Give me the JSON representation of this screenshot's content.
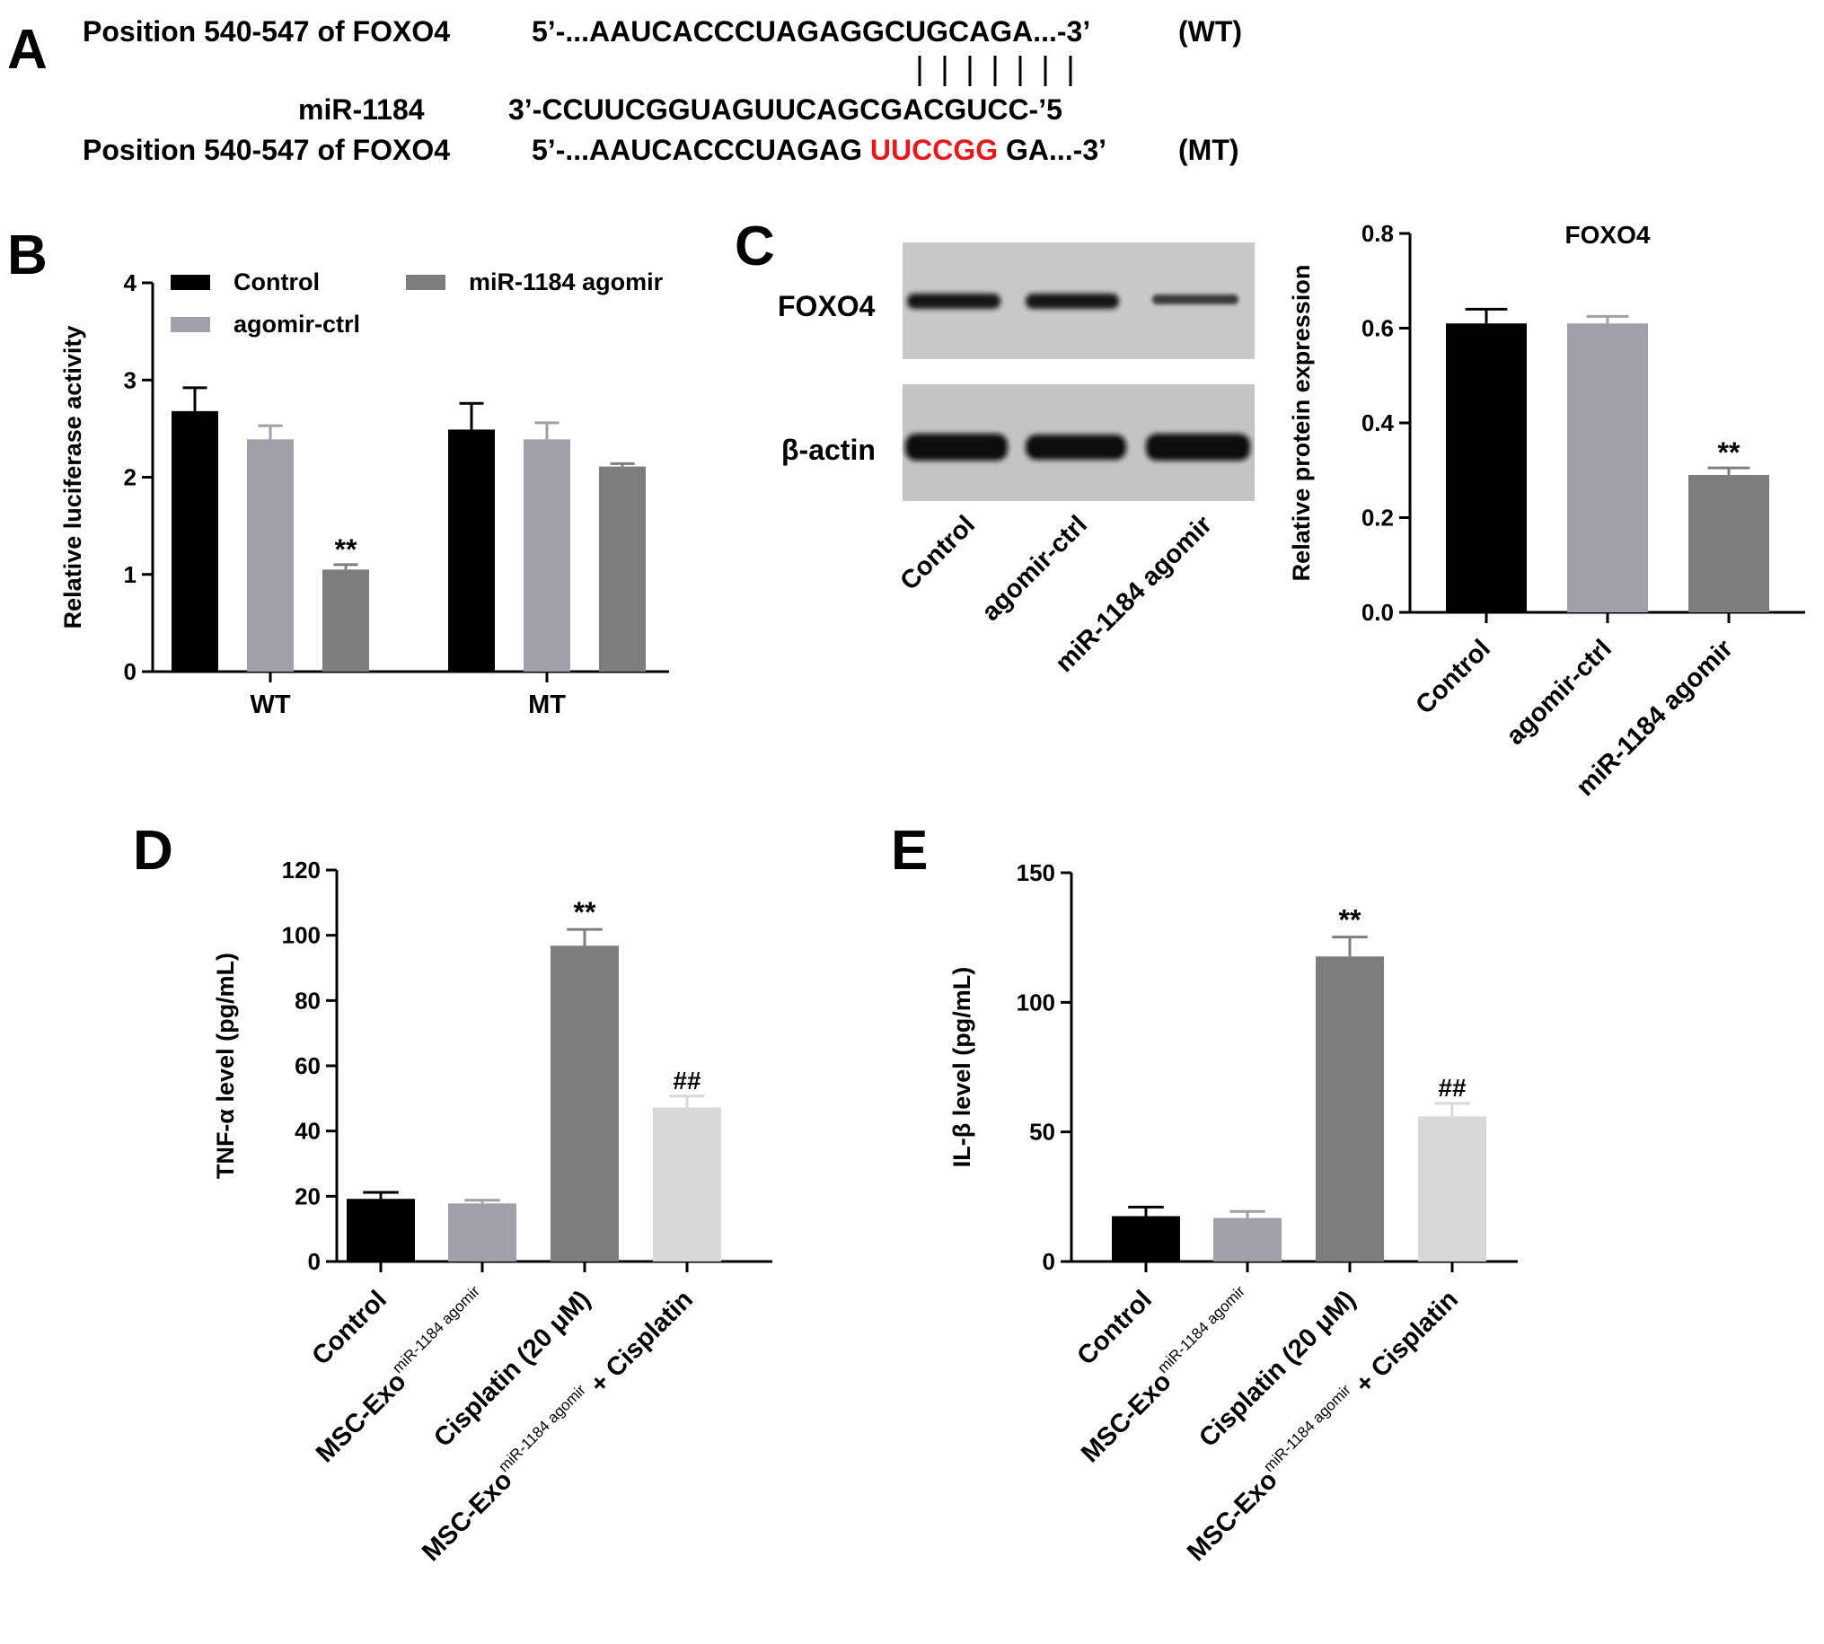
{
  "panel_a": {
    "letter": "A",
    "wt": {
      "label": "Position 540-547 of FOXO4",
      "seq_pre": "5’-...AAUCACCCUAGAGGCUGCAGA...-3’",
      "tag": "(WT)"
    },
    "mir": {
      "label": "miR-1184",
      "seq": "3’-CCUUCGGUAGUUCAGCGACGUCC-’5"
    },
    "mt": {
      "label": "Position 540-547 of FOXO4",
      "seq_pre": "5’-...AAUCACCCUAGAG",
      "seq_mut": "UUCCGG",
      "seq_post": "GA...-3’",
      "tag": "(MT)"
    },
    "mut_color": "#e41a1c"
  },
  "panel_c_blot": {
    "band_labels": [
      "FOXO4",
      "β-actin"
    ],
    "lane_labels": [
      "Control",
      "agomir-ctrl",
      "miR-1184 agomir"
    ]
  },
  "colors": {
    "control": "#000000",
    "agomir_ctrl": "#a0a0a8",
    "mir_agomir": "#7d7d7d",
    "combo": "#d8d8d8"
  },
  "chart_data": [
    {
      "panel": "B",
      "type": "bar",
      "categories": [
        "WT",
        "MT"
      ],
      "ylabel": "Relative luciferase activity",
      "ylim": [
        0,
        4
      ],
      "yticks": [
        0,
        1,
        2,
        3,
        4
      ],
      "legend": "top-left",
      "series": [
        {
          "name": "Control",
          "color": "#000000",
          "values": [
            2.68,
            2.49
          ],
          "errors": [
            0.24,
            0.27
          ]
        },
        {
          "name": "agomir-ctrl",
          "color": "#a0a0a8",
          "values": [
            2.39,
            2.39
          ],
          "errors": [
            0.14,
            0.17
          ]
        },
        {
          "name": "miR-1184 agomir",
          "color": "#7d7d7d",
          "values": [
            1.05,
            2.11
          ],
          "errors": [
            0.05,
            0.03
          ]
        }
      ],
      "annotations": [
        {
          "category": "WT",
          "series": "miR-1184 agomir",
          "text": "**"
        }
      ]
    },
    {
      "panel": "C",
      "type": "bar",
      "title": "FOXO4",
      "categories": [
        "Control",
        "agomir-ctrl",
        "miR-1184 agomir"
      ],
      "ylabel": "Relative protein expression",
      "ylim": [
        0,
        0.8
      ],
      "yticks": [
        "0.0",
        "0.2",
        "0.4",
        "0.6",
        "0.8"
      ],
      "values": [
        0.61,
        0.61,
        0.29
      ],
      "errors": [
        0.03,
        0.015,
        0.015
      ],
      "colors": [
        "#000000",
        "#a0a0a8",
        "#7d7d7d"
      ],
      "annotations": [
        {
          "index": 2,
          "text": "**"
        }
      ]
    },
    {
      "panel": "D",
      "type": "bar",
      "categories": [
        {
          "text": "Control",
          "sup": "",
          "post": ""
        },
        {
          "text": "MSC-Exo",
          "sup": "miR-1184 agomir",
          "post": ""
        },
        {
          "text": "Cisplatin (20 μM)",
          "sup": "",
          "post": ""
        },
        {
          "text": "MSC-Exo",
          "sup": "miR-1184 agomir",
          "post": " + Cisplatin"
        }
      ],
      "ylabel": "TNF-α level (pg/mL)",
      "ylim": [
        0,
        120
      ],
      "yticks": [
        0,
        20,
        40,
        60,
        80,
        100,
        120
      ],
      "values": [
        19.2,
        17.8,
        96.8,
        47.2
      ],
      "errors": [
        2.0,
        1.0,
        5.0,
        3.5
      ],
      "colors": [
        "#000000",
        "#a0a0a8",
        "#7d7d7d",
        "#d8d8d8"
      ],
      "annotations": [
        {
          "index": 2,
          "text": "**"
        },
        {
          "index": 3,
          "text": "##"
        }
      ]
    },
    {
      "panel": "E",
      "type": "bar",
      "categories": [
        {
          "text": "Control",
          "sup": "",
          "post": ""
        },
        {
          "text": "MSC-Exo",
          "sup": "miR-1184 agomir",
          "post": ""
        },
        {
          "text": "Cisplatin (20 μM)",
          "sup": "",
          "post": ""
        },
        {
          "text": "MSC-Exo",
          "sup": "miR-1184 agomir",
          "post": " + Cisplatin"
        }
      ],
      "ylabel": "IL-β level (pg/mL)",
      "ylim": [
        0,
        150
      ],
      "yticks": [
        0,
        50,
        100,
        150
      ],
      "values": [
        17.5,
        16.8,
        117.7,
        56.0
      ],
      "errors": [
        3.5,
        2.5,
        7.5,
        5.0
      ],
      "colors": [
        "#000000",
        "#a0a0a8",
        "#7d7d7d",
        "#d8d8d8"
      ],
      "annotations": [
        {
          "index": 2,
          "text": "**"
        },
        {
          "index": 3,
          "text": "##"
        }
      ]
    }
  ]
}
